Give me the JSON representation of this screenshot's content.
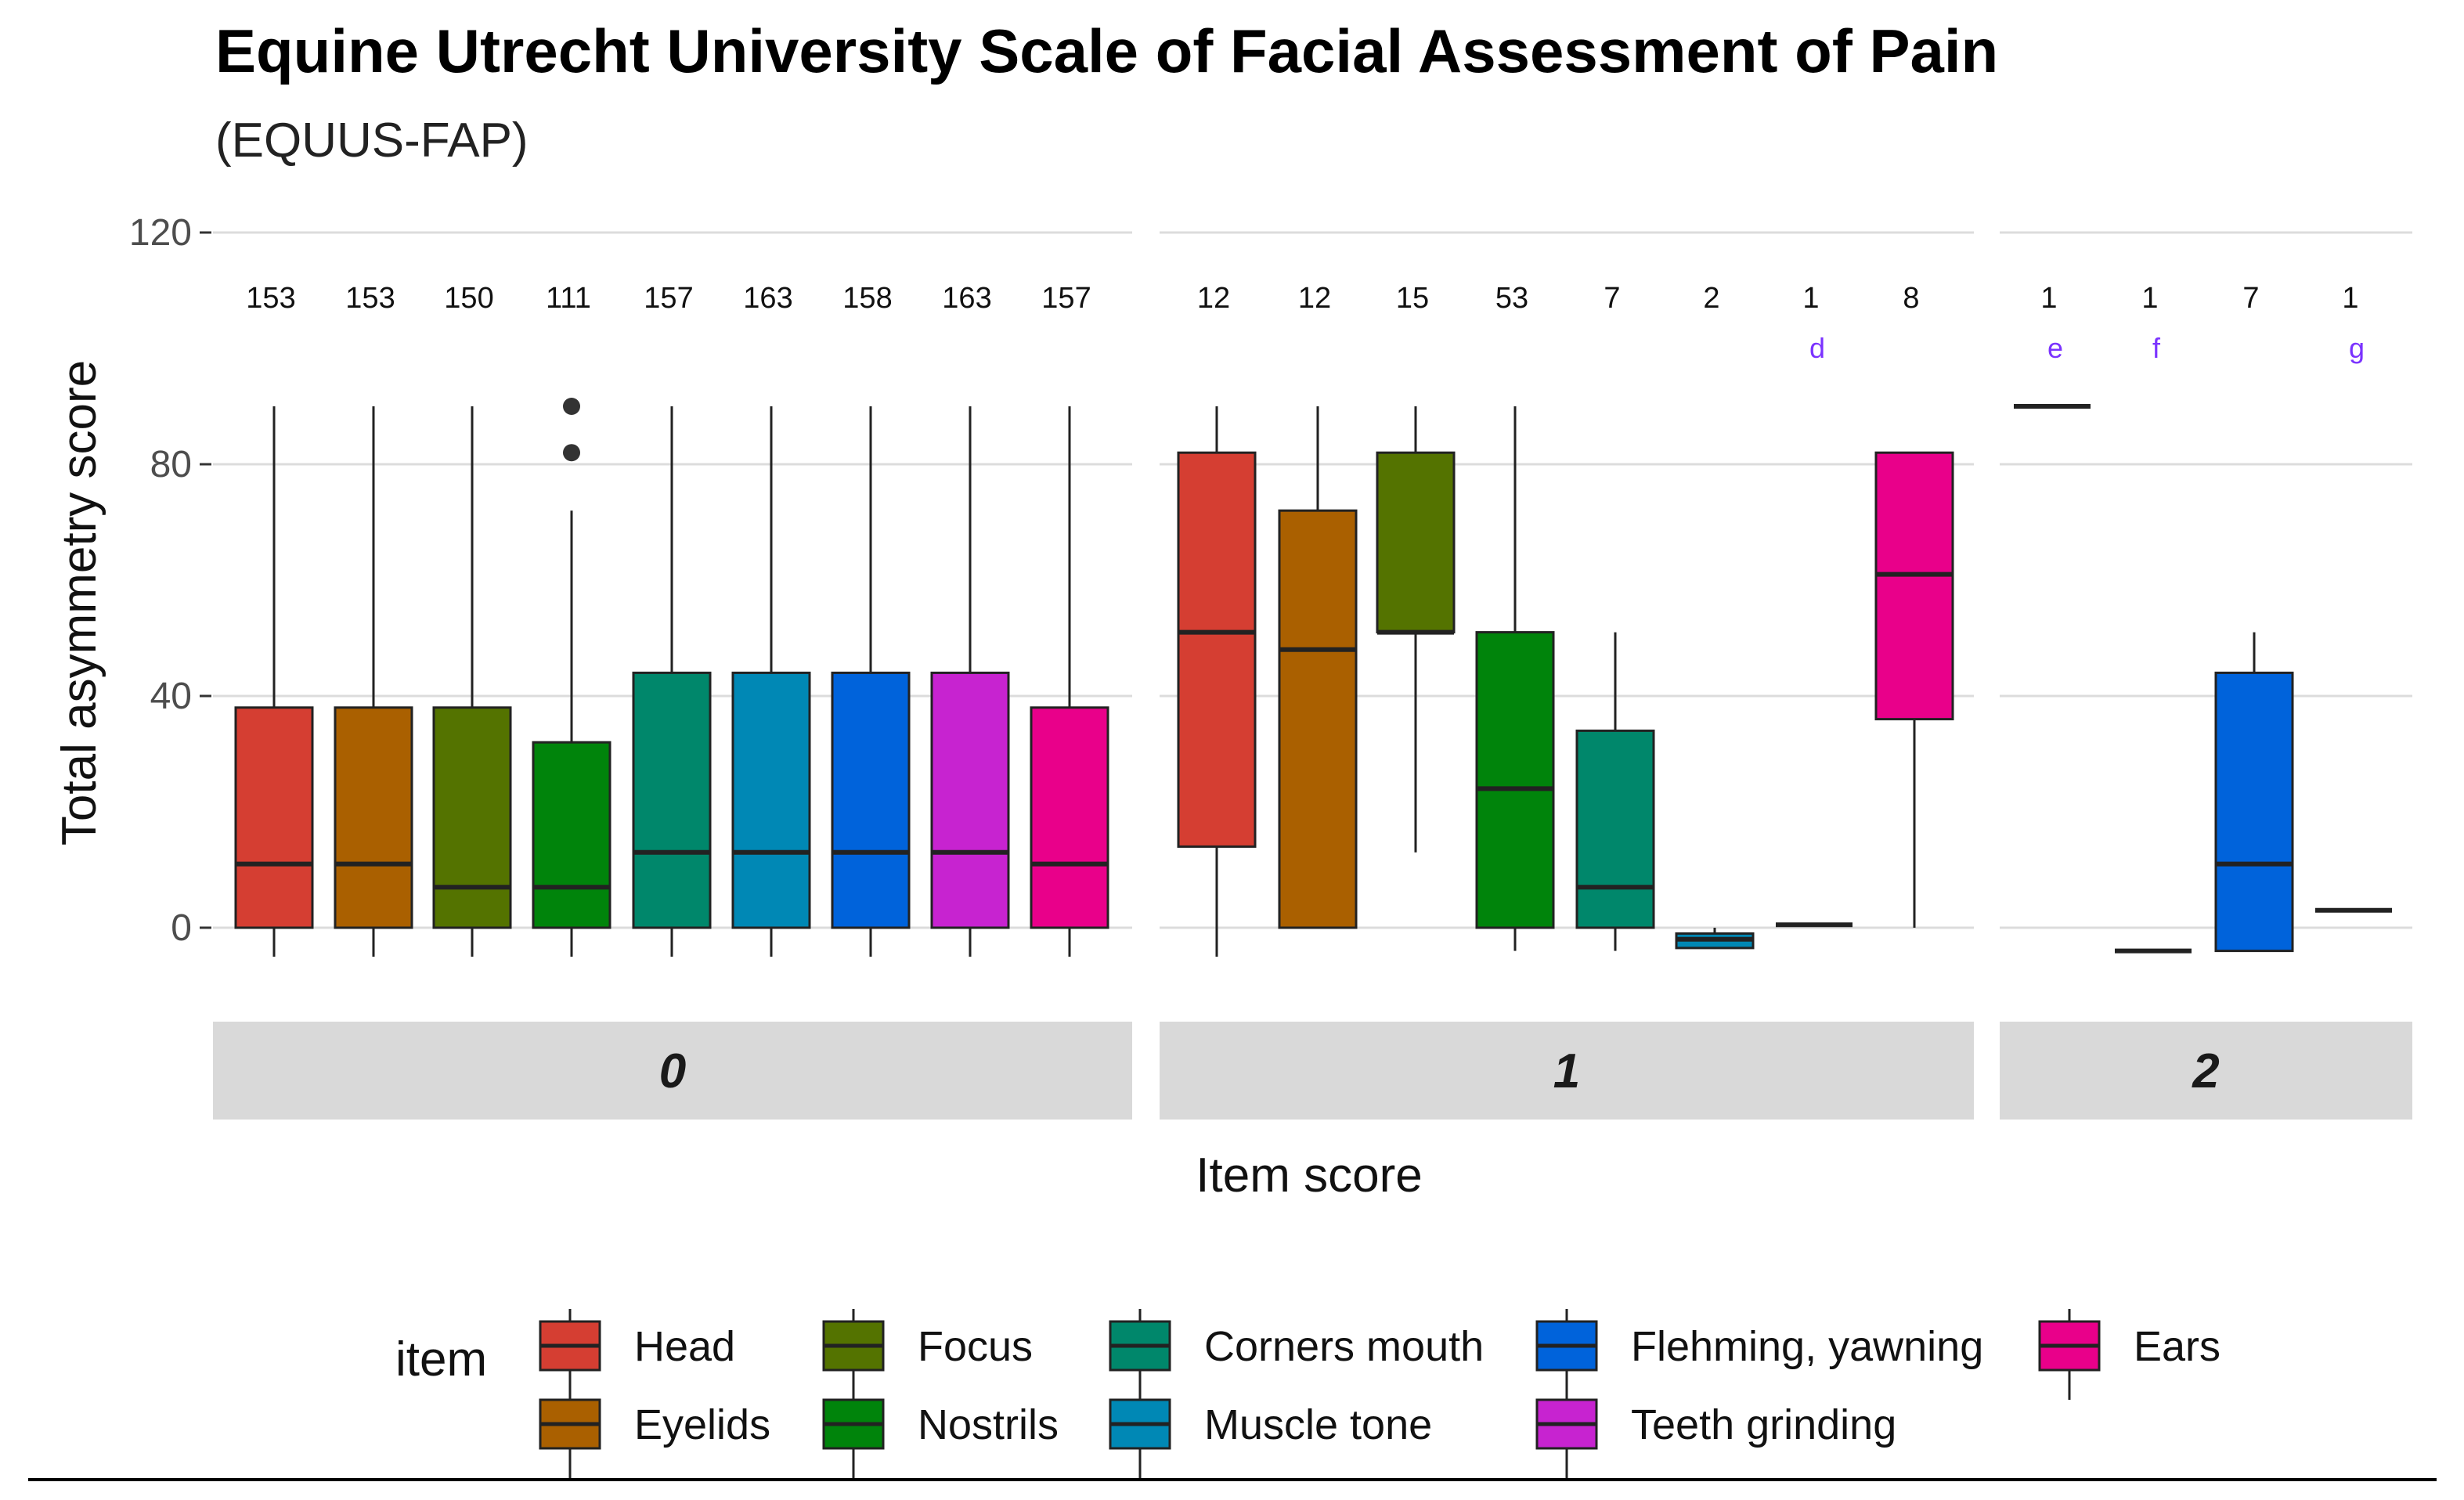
{
  "chart_data": {
    "type": "box",
    "title": "Equine Utrecht University Scale of Facial Assessment of Pain",
    "subtitle": "(EQUUS-FAP)",
    "xlabel": "Item score",
    "ylabel": "Total asymmetry score",
    "ylim": [
      -8,
      120
    ],
    "yticks": [
      0,
      40,
      80,
      120
    ],
    "grid": true,
    "legend": {
      "title": "item",
      "position": "bottom",
      "items": [
        {
          "name": "Head",
          "color": "#D53E32"
        },
        {
          "name": "Eyelids",
          "color": "#AA6000"
        },
        {
          "name": "Focus",
          "color": "#547300"
        },
        {
          "name": "Nostrils",
          "color": "#00840B"
        },
        {
          "name": "Corners mouth",
          "color": "#00876B"
        },
        {
          "name": "Muscle tone",
          "color": "#0088B5"
        },
        {
          "name": "Flehming, yawning",
          "color": "#0063DB"
        },
        {
          "name": "Teeth grinding",
          "color": "#C723D0"
        },
        {
          "name": "Ears",
          "color": "#E9008A"
        }
      ]
    },
    "facets": [
      {
        "label": "0",
        "boxes": [
          {
            "item": "Head",
            "count": "153",
            "letter": "",
            "min": -5,
            "q1": 0,
            "median": 11,
            "q3": 38,
            "max": 90,
            "outliers": []
          },
          {
            "item": "Eyelids",
            "count": "153",
            "letter": "",
            "min": -5,
            "q1": 0,
            "median": 11,
            "q3": 38,
            "max": 90,
            "outliers": []
          },
          {
            "item": "Focus",
            "count": "150",
            "letter": "",
            "min": -5,
            "q1": 0,
            "median": 7,
            "q3": 38,
            "max": 90,
            "outliers": []
          },
          {
            "item": "Nostrils",
            "count": "111",
            "letter": "",
            "min": -5,
            "q1": 0,
            "median": 7,
            "q3": 32,
            "max": 72,
            "outliers": [
              82,
              90
            ]
          },
          {
            "item": "Corners mouth",
            "count": "157",
            "letter": "",
            "min": -5,
            "q1": 0,
            "median": 13,
            "q3": 44,
            "max": 90,
            "outliers": []
          },
          {
            "item": "Muscle tone",
            "count": "163",
            "letter": "",
            "min": -5,
            "q1": 0,
            "median": 13,
            "q3": 44,
            "max": 90,
            "outliers": []
          },
          {
            "item": "Flehming, yawning",
            "count": "158",
            "letter": "",
            "min": -5,
            "q1": 0,
            "median": 13,
            "q3": 44,
            "max": 90,
            "outliers": []
          },
          {
            "item": "Teeth grinding",
            "count": "163",
            "letter": "",
            "min": -5,
            "q1": 0,
            "median": 13,
            "q3": 44,
            "max": 90,
            "outliers": []
          },
          {
            "item": "Ears",
            "count": "157",
            "letter": "",
            "min": -5,
            "q1": 0,
            "median": 11,
            "q3": 38,
            "max": 90,
            "outliers": []
          }
        ]
      },
      {
        "label": "1",
        "boxes": [
          {
            "item": "Head",
            "count": "12",
            "letter": "",
            "min": -5,
            "q1": 14,
            "median": 51,
            "q3": 82,
            "max": 90,
            "outliers": []
          },
          {
            "item": "Eyelids",
            "count": "12",
            "letter": "",
            "min": 0,
            "q1": 0,
            "median": 48,
            "q3": 72,
            "max": 90,
            "outliers": []
          },
          {
            "item": "Focus",
            "count": "15",
            "letter": "",
            "min": 13,
            "q1": 51,
            "median": 51,
            "q3": 82,
            "max": 90,
            "outliers": []
          },
          {
            "item": "Nostrils",
            "count": "53",
            "letter": "",
            "min": -4,
            "q1": 0,
            "median": 24,
            "q3": 51,
            "max": 90,
            "outliers": []
          },
          {
            "item": "Corners mouth",
            "count": "7",
            "letter": "",
            "min": -4,
            "q1": 0,
            "median": 7,
            "q3": 34,
            "max": 51,
            "outliers": []
          },
          {
            "item": "Muscle tone",
            "count": "2",
            "letter": "",
            "min": -3.5,
            "q1": -3.5,
            "median": -2,
            "q3": -1,
            "max": 0,
            "outliers": []
          },
          {
            "item": "Flehming, yawning",
            "count": "1",
            "letter": "d",
            "min": 0.5,
            "q1": 0.5,
            "median": 0.5,
            "q3": 0.5,
            "max": 0.5,
            "outliers": []
          },
          {
            "item": "Ears",
            "count": "8",
            "letter": "",
            "min": 0,
            "q1": 36,
            "median": 61,
            "q3": 82,
            "max": 82,
            "outliers": []
          }
        ]
      },
      {
        "label": "2",
        "boxes": [
          {
            "item": "Head",
            "count": "1",
            "letter": "e",
            "min": 90,
            "q1": 90,
            "median": 90,
            "q3": 90,
            "max": 90,
            "outliers": []
          },
          {
            "item": "Nostrils",
            "count": "1",
            "letter": "f",
            "min": -4,
            "q1": -4,
            "median": -4,
            "q3": -4,
            "max": -4,
            "outliers": []
          },
          {
            "item": "Flehming, yawning",
            "count": "7",
            "letter": "",
            "min": -4,
            "q1": -4,
            "median": 11,
            "q3": 44,
            "max": 51,
            "outliers": []
          },
          {
            "item": "Ears",
            "count": "1",
            "letter": "g",
            "min": 3,
            "q1": 3,
            "median": 3,
            "q3": 3,
            "max": 3,
            "outliers": []
          }
        ]
      }
    ]
  }
}
